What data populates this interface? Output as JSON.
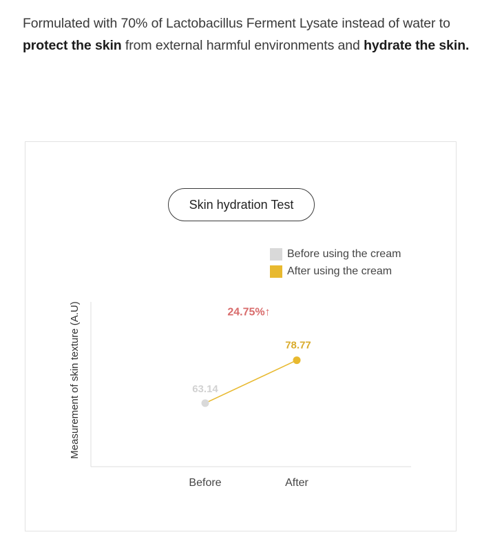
{
  "intro": {
    "line1": "Formulated with 70% of  Lactobacillus Ferment Lysate instead of water to",
    "line2_bold_a": "protect the skin",
    "line2_mid": " from external harmful environments and ",
    "line2_bold_b": "hydrate the skin."
  },
  "colors": {
    "before": "#d9d9d9",
    "after": "#e8b92f",
    "change": "#d86b6b",
    "before_label": "#d2d2d2",
    "after_label": "#d9ab2b"
  },
  "chart_data": {
    "type": "line",
    "title": "Skin hydration Test",
    "ylabel": "Measurement of skin texture (A.U)",
    "xlabel": "",
    "categories": [
      "Before",
      "After"
    ],
    "values": [
      63.14,
      78.77
    ],
    "value_labels": [
      "63.14",
      "78.77"
    ],
    "ylim": [
      40,
      100
    ],
    "legend": {
      "position": "top-right",
      "entries": [
        "Before using the cream",
        "After using the cream"
      ]
    },
    "annotation": "24.75%↑",
    "grid": false
  }
}
